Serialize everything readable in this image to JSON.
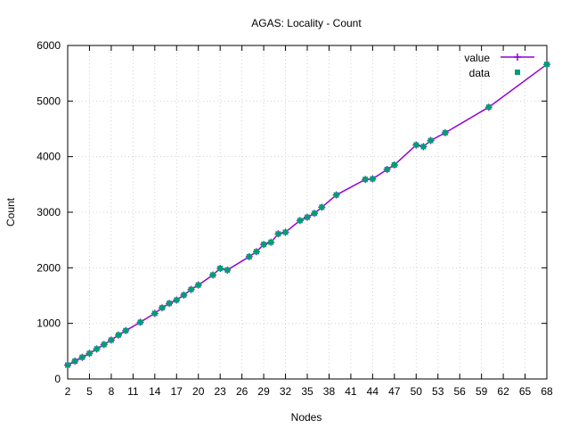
{
  "chart_data": {
    "type": "line",
    "title": "AGAS: Locality - Count",
    "xlabel": "Nodes",
    "ylabel": "Count",
    "xlim": [
      2,
      68
    ],
    "ylim": [
      0,
      6000
    ],
    "xticks": [
      "2",
      "5",
      "8",
      "11",
      "14",
      "17",
      "20",
      "23",
      "26",
      "29",
      "32",
      "35",
      "38",
      "41",
      "44",
      "47",
      "50",
      "53",
      "56",
      "59",
      "62",
      "65",
      "68"
    ],
    "yticks": [
      "0",
      "1000",
      "2000",
      "3000",
      "4000",
      "5000",
      "6000"
    ],
    "grid": true,
    "legend_position": "top-right",
    "legend": [
      "value",
      "data"
    ],
    "series": [
      {
        "name": "value",
        "color": "#9400d3",
        "style": "line+points",
        "x": [
          2,
          3,
          4,
          5,
          6,
          7,
          8,
          9,
          10,
          12,
          14,
          15,
          16,
          17,
          18,
          19,
          20,
          22,
          23,
          24,
          27,
          28,
          29,
          30,
          31,
          32,
          34,
          35,
          36,
          37,
          39,
          43,
          44,
          46,
          47,
          50,
          51,
          52,
          54,
          60,
          68
        ],
        "y": [
          250,
          320,
          390,
          460,
          540,
          620,
          700,
          790,
          870,
          1020,
          1180,
          1280,
          1360,
          1420,
          1510,
          1610,
          1690,
          1870,
          1990,
          1960,
          2200,
          2290,
          2420,
          2460,
          2610,
          2640,
          2850,
          2910,
          2980,
          3090,
          3310,
          3590,
          3600,
          3770,
          3850,
          4210,
          4180,
          4290,
          4430,
          4890,
          5660
        ]
      },
      {
        "name": "data",
        "color": "#009e73",
        "style": "points",
        "x": [
          2,
          3,
          4,
          5,
          6,
          7,
          8,
          9,
          10,
          12,
          14,
          15,
          16,
          17,
          18,
          19,
          20,
          22,
          23,
          24,
          27,
          28,
          29,
          30,
          31,
          32,
          34,
          35,
          36,
          37,
          39,
          43,
          44,
          46,
          47,
          50,
          51,
          52,
          54,
          60,
          68
        ],
        "y": [
          250,
          320,
          390,
          460,
          540,
          620,
          700,
          790,
          870,
          1020,
          1180,
          1280,
          1360,
          1420,
          1510,
          1610,
          1690,
          1870,
          1990,
          1960,
          2200,
          2290,
          2420,
          2460,
          2610,
          2640,
          2850,
          2910,
          2980,
          3090,
          3310,
          3590,
          3600,
          3770,
          3850,
          4210,
          4180,
          4290,
          4430,
          4890,
          5660
        ]
      }
    ]
  }
}
